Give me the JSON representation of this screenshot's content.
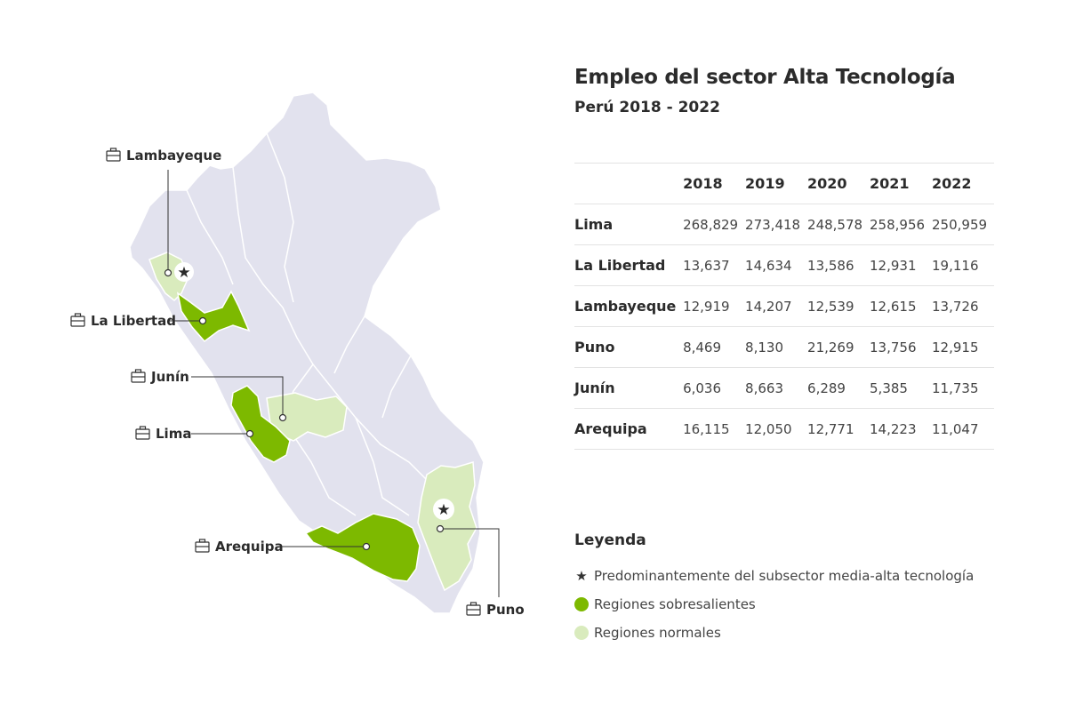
{
  "title": "Empleo del sector Alta Tecnología",
  "subtitle": "Perú 2018 - 2022",
  "colors": {
    "base": "#e2e2ee",
    "outstanding": "#7db900",
    "normal": "#d9ebbd",
    "border": "#ffffff"
  },
  "map_labels": {
    "lambayeque": "Lambayeque",
    "la_libertad": "La Libertad",
    "junin": "Junín",
    "lima": "Lima",
    "arequipa": "Arequipa",
    "puno": "Puno"
  },
  "table": {
    "headers": [
      "2018",
      "2019",
      "2020",
      "2021",
      "2022"
    ],
    "rows": [
      {
        "region": "Lima",
        "values": [
          "268,829",
          "273,418",
          "248,578",
          "258,956",
          "250,959"
        ]
      },
      {
        "region": "La Libertad",
        "values": [
          "13,637",
          "14,634",
          "13,586",
          "12,931",
          "19,116"
        ]
      },
      {
        "region": "Lambayeque",
        "values": [
          "12,919",
          "14,207",
          "12,539",
          "12,615",
          "13,726"
        ]
      },
      {
        "region": "Puno",
        "values": [
          "8,469",
          "8,130",
          "21,269",
          "13,756",
          "12,915"
        ]
      },
      {
        "region": "Junín",
        "values": [
          "6,036",
          "8,663",
          "6,289",
          "5,385",
          "11,735"
        ]
      },
      {
        "region": "Arequipa",
        "values": [
          "16,115",
          "12,050",
          "12,771",
          "14,223",
          "11,047"
        ]
      }
    ]
  },
  "legend": {
    "title": "Leyenda",
    "star_label": "Predominantemente del subsector media-alta tecnología",
    "outstanding_label": "Regiones sobresalientes",
    "normal_label": "Regiones normales"
  }
}
